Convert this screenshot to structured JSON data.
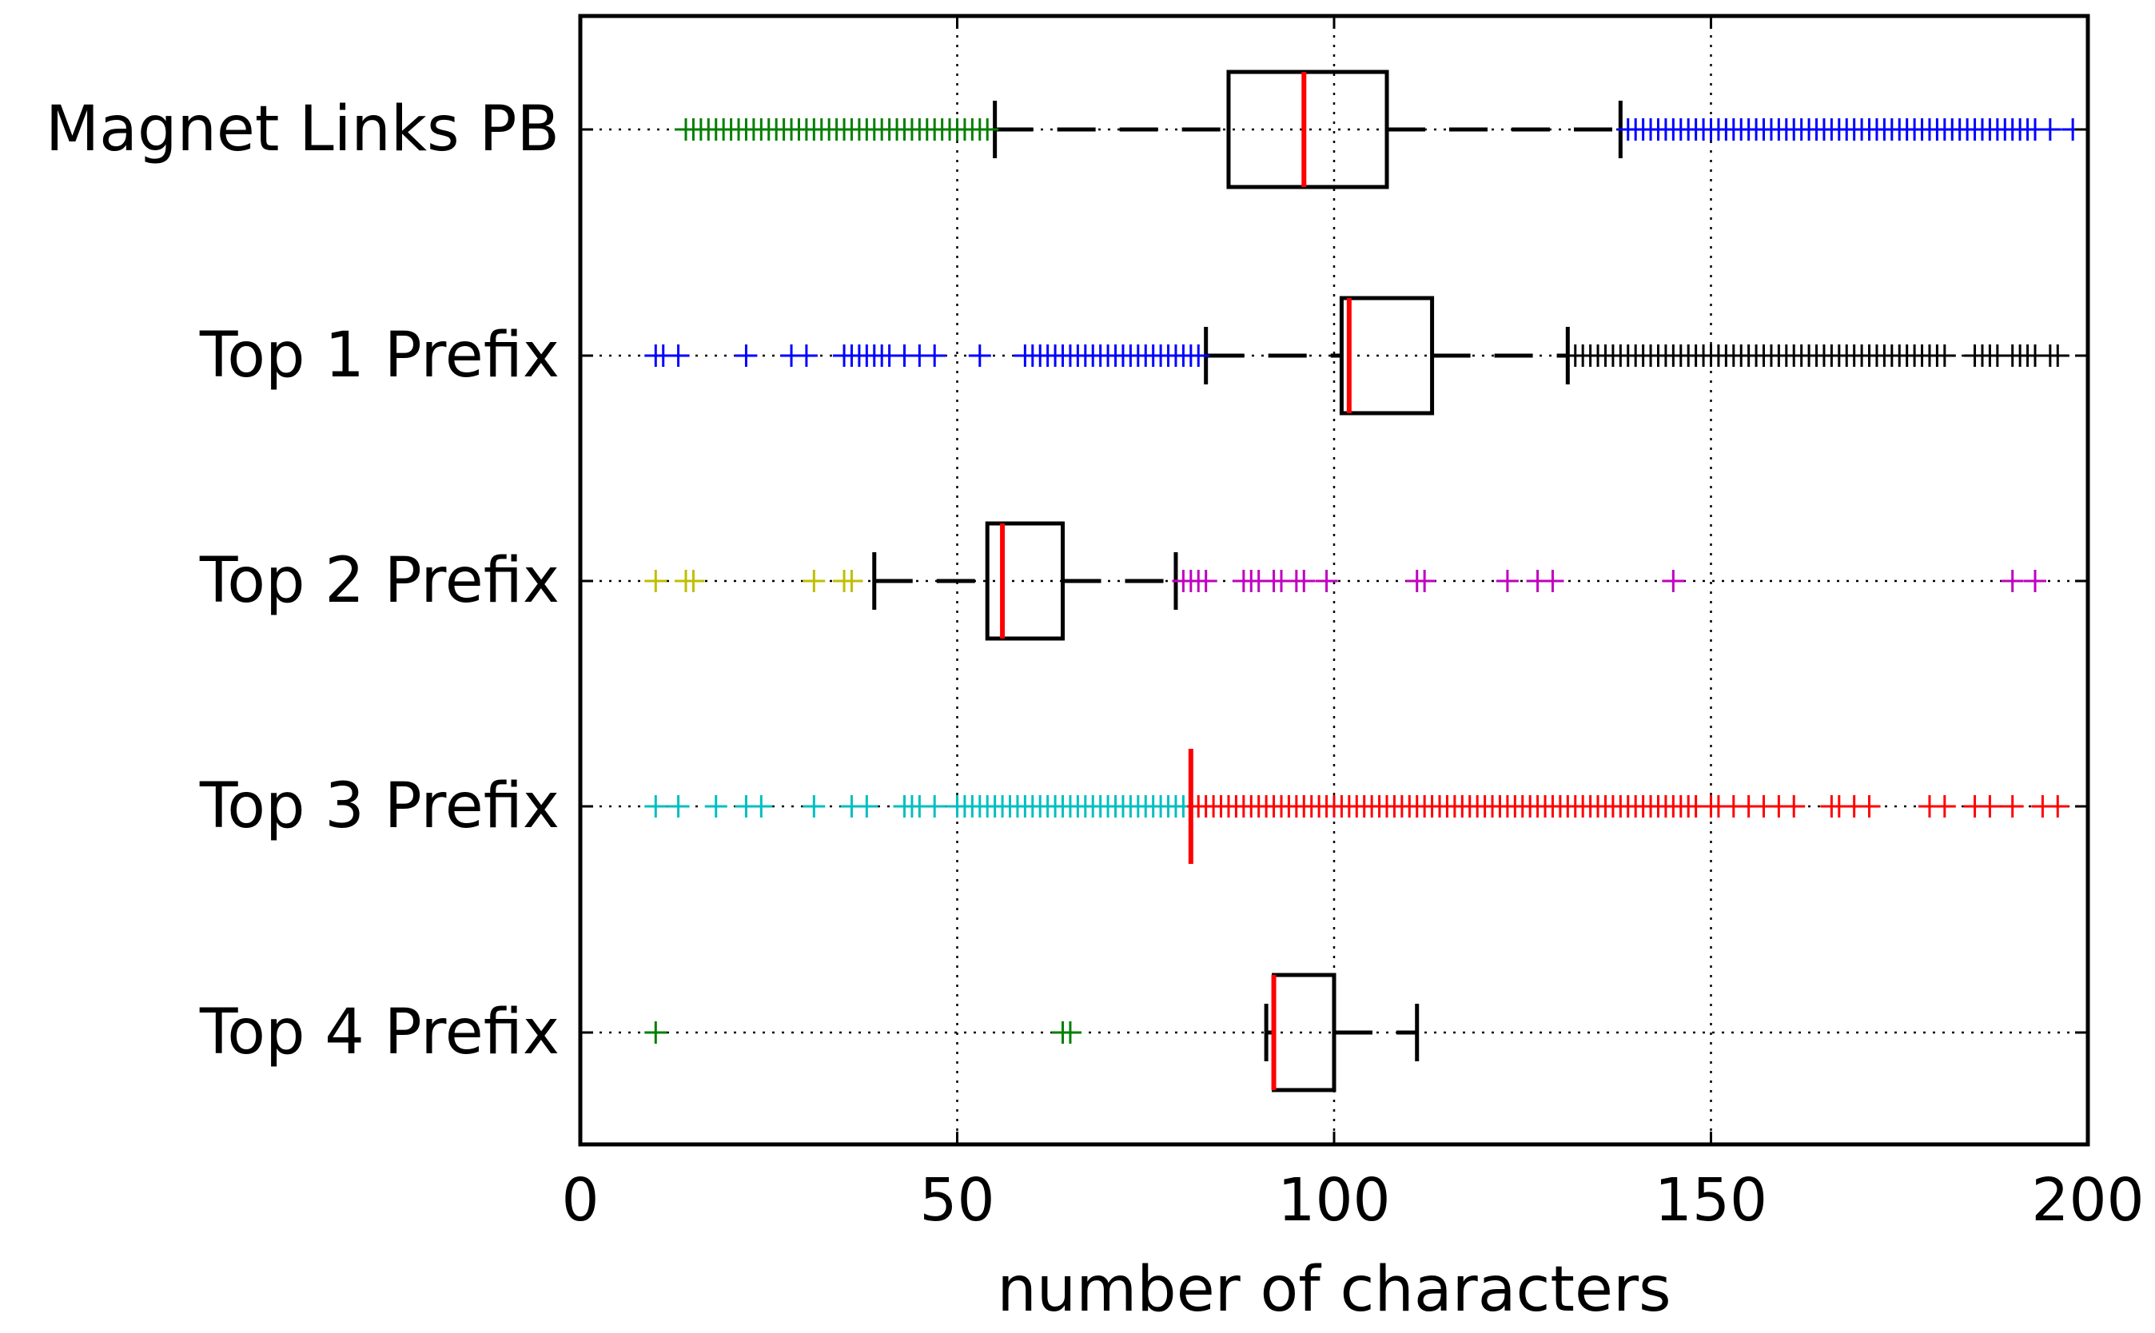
{
  "chart_data": {
    "type": "boxplot",
    "orientation": "horizontal",
    "xlabel": "number of characters",
    "xlim": [
      0,
      200
    ],
    "x_ticks": [
      0,
      50,
      100,
      150,
      200
    ],
    "x_tick_labels": [
      "0",
      "50",
      "100",
      "150",
      "200"
    ],
    "grid": true,
    "categories": [
      "Magnet Links PB",
      "Top 1 Prefix",
      "Top 2 Prefix",
      "Top 3 Prefix",
      "Top 4 Prefix"
    ],
    "series": [
      {
        "name": "Magnet Links PB",
        "whisker_low": 55,
        "q1": 86,
        "median": 96,
        "q3": 107,
        "whisker_high": 138,
        "outliers_low_color": "#007f00",
        "outliers_low": [
          14,
          15,
          16,
          17,
          18,
          19,
          20,
          21,
          22,
          23,
          24,
          25,
          26,
          27,
          28,
          29,
          30,
          31,
          32,
          33,
          34,
          35,
          36,
          37,
          38,
          39,
          40,
          41,
          42,
          43,
          44,
          45,
          46,
          47,
          48,
          49,
          50,
          51,
          52,
          53,
          54
        ],
        "outliers_high_color": "#0000ff",
        "outliers_high": [
          139,
          140,
          141,
          142,
          143,
          144,
          145,
          146,
          147,
          148,
          149,
          150,
          151,
          152,
          153,
          154,
          155,
          156,
          157,
          158,
          159,
          160,
          161,
          162,
          163,
          164,
          165,
          166,
          167,
          168,
          169,
          170,
          171,
          172,
          173,
          174,
          175,
          176,
          177,
          178,
          179,
          180,
          181,
          182,
          183,
          184,
          185,
          186,
          187,
          188,
          189,
          190,
          191,
          192,
          193,
          195,
          198
        ]
      },
      {
        "name": "Top 1 Prefix",
        "whisker_low": 83,
        "q1": 101,
        "median": 102,
        "q3": 113,
        "whisker_high": 131,
        "outliers_low_color": "#0000ff",
        "outliers_low": [
          10,
          11,
          13,
          22,
          28,
          30,
          35,
          36,
          37,
          38,
          39,
          40,
          41,
          43,
          45,
          47,
          53,
          59,
          60,
          61,
          62,
          63,
          64,
          65,
          66,
          67,
          68,
          69,
          70,
          71,
          72,
          73,
          74,
          75,
          76,
          77,
          78,
          79,
          80,
          81,
          82
        ],
        "outliers_high_color": "#000000",
        "outliers_high": [
          132,
          133,
          134,
          135,
          136,
          137,
          138,
          139,
          140,
          141,
          142,
          143,
          144,
          145,
          146,
          147,
          148,
          149,
          150,
          151,
          152,
          153,
          154,
          155,
          156,
          157,
          158,
          159,
          160,
          161,
          162,
          163,
          164,
          165,
          166,
          167,
          168,
          169,
          170,
          171,
          172,
          173,
          174,
          175,
          176,
          177,
          178,
          179,
          180,
          181,
          185,
          186,
          187,
          188,
          190,
          191,
          192,
          193,
          195,
          196
        ]
      },
      {
        "name": "Top 2 Prefix",
        "whisker_low": 39,
        "q1": 54,
        "median": 56,
        "q3": 64,
        "whisker_high": 79,
        "outliers_low_color": "#bfbf00",
        "outliers_low": [
          10,
          14,
          15,
          31,
          35,
          36
        ],
        "outliers_high_color": "#bf00bf",
        "outliers_high": [
          80,
          81,
          82,
          83,
          88,
          89,
          90,
          92,
          93,
          95,
          96,
          99,
          111,
          112,
          123,
          127,
          129,
          145,
          190,
          193
        ]
      },
      {
        "name": "Top 3 Prefix",
        "whisker_low": 81,
        "q1": 81,
        "median": 81,
        "q3": 81,
        "whisker_high": 81,
        "outliers_low_color": "#00bfbf",
        "outliers_low": [
          10,
          13,
          18,
          22,
          24,
          31,
          36,
          38,
          43,
          44,
          45,
          47,
          50,
          51,
          52,
          53,
          54,
          55,
          56,
          57,
          58,
          59,
          60,
          61,
          62,
          63,
          64,
          65,
          66,
          67,
          68,
          69,
          70,
          71,
          72,
          73,
          74,
          75,
          76,
          77,
          78,
          79,
          80
        ],
        "outliers_high_color": "#ff0000",
        "outliers_high": [
          82,
          83,
          84,
          85,
          86,
          87,
          88,
          89,
          90,
          91,
          92,
          93,
          94,
          95,
          96,
          97,
          98,
          99,
          100,
          101,
          102,
          103,
          104,
          105,
          106,
          107,
          108,
          109,
          110,
          111,
          112,
          113,
          114,
          115,
          116,
          117,
          118,
          119,
          120,
          121,
          122,
          123,
          124,
          125,
          126,
          127,
          128,
          129,
          130,
          131,
          132,
          133,
          134,
          135,
          136,
          137,
          138,
          139,
          140,
          141,
          142,
          143,
          144,
          145,
          146,
          147,
          148,
          150,
          151,
          153,
          155,
          157,
          159,
          161,
          166,
          167,
          169,
          171,
          179,
          181,
          185,
          187,
          190,
          194,
          196
        ]
      },
      {
        "name": "Top 4 Prefix",
        "whisker_low": 91,
        "q1": 92,
        "median": 92,
        "q3": 100,
        "whisker_high": 111,
        "outliers_low_color": "#007f00",
        "outliers_low": [
          10,
          64,
          65
        ],
        "outliers_high_color": "#000000",
        "outliers_high": []
      }
    ]
  }
}
